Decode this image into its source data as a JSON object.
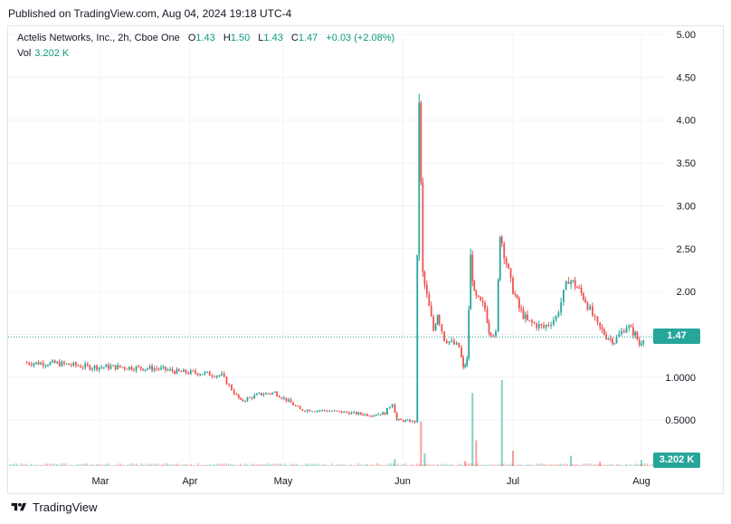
{
  "header": {
    "published": "Published on TradingView.com, Aug 04, 2024 19:18 UTC-4"
  },
  "legend": {
    "symbol": "Actelis Networks, Inc., 2h, Cboe One",
    "open_label": "O",
    "open": "1.43",
    "high_label": "H",
    "high": "1.50",
    "low_label": "L",
    "low": "1.43",
    "close_label": "C",
    "close": "1.47",
    "change": "+0.03 (+2.08%)",
    "volume_label": "Vol",
    "volume": "3.202 K"
  },
  "badges": {
    "last_price": "1.47",
    "last_volume": "3.202 K"
  },
  "footer": {
    "brand": "TradingView"
  },
  "colors": {
    "up": "#26a69a",
    "down": "#ef5350",
    "grid": "#f0f3fa",
    "text": "#131722"
  },
  "chart_data": {
    "type": "candlestick",
    "interval": "2h",
    "x_tick_labels": [
      "Mar",
      "Apr",
      "May",
      "Jun",
      "Jul",
      "Aug"
    ],
    "y_tick_labels": [
      "5.00",
      "4.50",
      "4.00",
      "3.50",
      "3.00",
      "2.50",
      "2.00",
      "1.50",
      "1.0000",
      "0.5000"
    ],
    "ylim": [
      0,
      5.0
    ],
    "grid": true,
    "price_series": [
      {
        "t": "Feb 12",
        "close": 1.17
      },
      {
        "t": "Feb 20",
        "close": 1.16
      },
      {
        "t": "Feb 28",
        "close": 1.12
      },
      {
        "t": "Mar 7",
        "close": 1.12
      },
      {
        "t": "Mar 15",
        "close": 1.11
      },
      {
        "t": "Mar 22",
        "close": 1.1
      },
      {
        "t": "Mar 29",
        "close": 1.06
      },
      {
        "t": "Apr 5",
        "close": 1.05
      },
      {
        "t": "Apr 12",
        "close": 1.02
      },
      {
        "t": "Apr 16",
        "close": 0.82
      },
      {
        "t": "Apr 18",
        "close": 0.72
      },
      {
        "t": "Apr 24",
        "close": 0.8
      },
      {
        "t": "Apr 29",
        "close": 0.82
      },
      {
        "t": "May 3",
        "close": 0.72
      },
      {
        "t": "May 6",
        "close": 0.62
      },
      {
        "t": "May 13",
        "close": 0.61
      },
      {
        "t": "May 20",
        "close": 0.58
      },
      {
        "t": "May 24",
        "close": 0.56
      },
      {
        "t": "May 28",
        "close": 0.58
      },
      {
        "t": "May 30",
        "close": 0.7
      },
      {
        "t": "May 31",
        "close": 0.5
      },
      {
        "t": "Jun 3",
        "close": 0.49
      },
      {
        "t": "Jun 5",
        "close": 0.48
      },
      {
        "t": "Jun 6",
        "close": 4.25
      },
      {
        "t": "Jun 7",
        "close": 2.2
      },
      {
        "t": "Jun 10",
        "close": 1.55
      },
      {
        "t": "Jun 11",
        "close": 1.75
      },
      {
        "t": "Jun 13",
        "close": 1.45
      },
      {
        "t": "Jun 17",
        "close": 1.35
      },
      {
        "t": "Jun 18",
        "close": 1.1
      },
      {
        "t": "Jun 19",
        "close": 1.2
      },
      {
        "t": "Jun 20",
        "close": 2.4
      },
      {
        "t": "Jun 21",
        "close": 1.95
      },
      {
        "t": "Jun 24",
        "close": 1.8
      },
      {
        "t": "Jun 25",
        "close": 1.55
      },
      {
        "t": "Jun 27",
        "close": 1.5
      },
      {
        "t": "Jun 28",
        "close": 2.7
      },
      {
        "t": "Jul 1",
        "close": 2.1
      },
      {
        "t": "Jul 3",
        "close": 1.8
      },
      {
        "t": "Jul 5",
        "close": 1.65
      },
      {
        "t": "Jul 9",
        "close": 1.58
      },
      {
        "t": "Jul 12",
        "close": 1.7
      },
      {
        "t": "Jul 15",
        "close": 2.15
      },
      {
        "t": "Jul 17",
        "close": 2.05
      },
      {
        "t": "Jul 19",
        "close": 1.9
      },
      {
        "t": "Jul 22",
        "close": 1.6
      },
      {
        "t": "Jul 24",
        "close": 1.48
      },
      {
        "t": "Jul 26",
        "close": 1.42
      },
      {
        "t": "Jul 29",
        "close": 1.6
      },
      {
        "t": "Jul 31",
        "close": 1.5
      },
      {
        "t": "Aug 1",
        "close": 1.38
      },
      {
        "t": "Aug 2",
        "close": 1.47
      }
    ],
    "volume_spikes": [
      {
        "t": "May 30",
        "relative": 0.08
      },
      {
        "t": "Jun 6",
        "relative": 0.52
      },
      {
        "t": "Jun 7",
        "relative": 0.15
      },
      {
        "t": "Jun 18",
        "relative": 0.06
      },
      {
        "t": "Jun 20",
        "relative": 0.85
      },
      {
        "t": "Jun 21",
        "relative": 0.3
      },
      {
        "t": "Jun 28",
        "relative": 1.0
      },
      {
        "t": "Jul 1",
        "relative": 0.18
      },
      {
        "t": "Jul 15",
        "relative": 0.12
      },
      {
        "t": "Jul 22",
        "relative": 0.05
      },
      {
        "t": "Aug 1",
        "relative": 0.07
      }
    ],
    "last_close": 1.47
  }
}
